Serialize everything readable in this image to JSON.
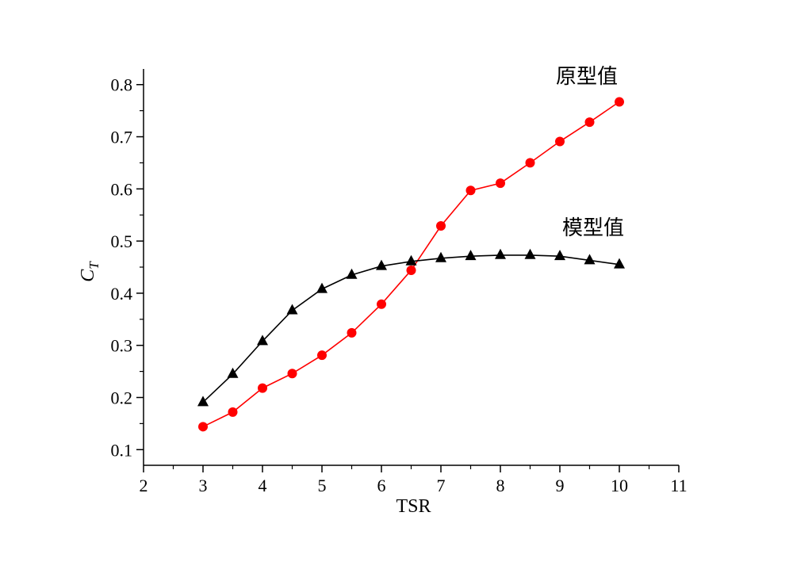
{
  "chart_data": {
    "type": "line",
    "xlabel": "TSR",
    "ylabel": "C",
    "ylabel_subscript": "T",
    "xlim": [
      2,
      11
    ],
    "ylim": [
      0.07,
      0.83
    ],
    "xticks": [
      2,
      3,
      4,
      5,
      6,
      7,
      8,
      9,
      10,
      11
    ],
    "xtick_labels": [
      "2",
      "3",
      "4",
      "5",
      "6",
      "7",
      "8",
      "9",
      "10",
      "11"
    ],
    "yticks": [
      0.1,
      0.2,
      0.3,
      0.4,
      0.5,
      0.6,
      0.7,
      0.8
    ],
    "ytick_labels": [
      "0.1",
      "0.2",
      "0.3",
      "0.4",
      "0.5",
      "0.6",
      "0.7",
      "0.8"
    ],
    "grid": false,
    "series": [
      {
        "name": "原型值",
        "color": "#ff0000",
        "marker": "circle",
        "x": [
          3,
          3.5,
          4,
          4.5,
          5,
          5.5,
          6,
          6.5,
          7,
          7.5,
          8,
          8.5,
          9,
          9.5,
          10
        ],
        "y": [
          0.144,
          0.172,
          0.218,
          0.246,
          0.281,
          0.324,
          0.379,
          0.444,
          0.529,
          0.597,
          0.611,
          0.65,
          0.691,
          0.728,
          0.767
        ]
      },
      {
        "name": "模型值",
        "color": "#000000",
        "marker": "triangle",
        "x": [
          3,
          3.5,
          4,
          4.5,
          5,
          5.5,
          6,
          6.5,
          7,
          7.5,
          8,
          8.5,
          9,
          9.5,
          10
        ],
        "y": [
          0.191,
          0.245,
          0.308,
          0.367,
          0.408,
          0.435,
          0.452,
          0.461,
          0.467,
          0.471,
          0.473,
          0.473,
          0.471,
          0.463,
          0.455
        ]
      }
    ]
  }
}
